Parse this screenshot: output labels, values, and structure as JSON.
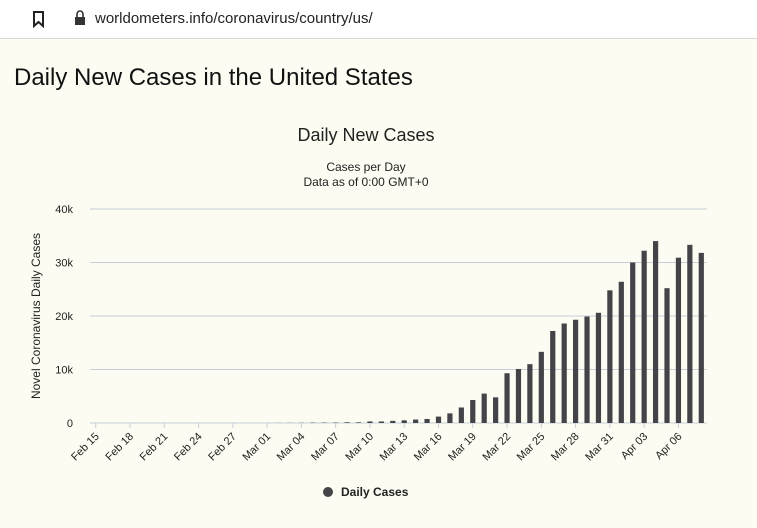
{
  "url": "worldometers.info/coronavirus/country/us/",
  "heading": "Daily New Cases in the United States",
  "chart_data": {
    "type": "bar",
    "title": "Daily New Cases",
    "subtitle": [
      "Cases per Day",
      "Data as of 0:00 GMT+0"
    ],
    "y_label": "Novel Coronavirus Daily Cases",
    "categories": [
      "Feb 15",
      null,
      null,
      "Feb 18",
      null,
      null,
      "Feb 21",
      null,
      null,
      "Feb 24",
      null,
      null,
      "Feb 27",
      null,
      null,
      "Mar 01",
      null,
      null,
      "Mar 04",
      null,
      null,
      "Mar 07",
      null,
      null,
      "Mar 10",
      null,
      null,
      "Mar 13",
      null,
      null,
      "Mar 16",
      null,
      null,
      "Mar 19",
      null,
      null,
      "Mar 22",
      null,
      null,
      "Mar 25",
      null,
      null,
      "Mar 28",
      null,
      null,
      "Mar 31",
      null,
      null,
      "Apr 03",
      null,
      null,
      "Apr 06",
      null,
      null
    ],
    "series": [
      {
        "name": "Daily Cases",
        "color": "#434348",
        "values": [
          0,
          0,
          0,
          0,
          0,
          0,
          0,
          0,
          0,
          0,
          0,
          0,
          0,
          0,
          0,
          8,
          20,
          25,
          33,
          69,
          65,
          82,
          137,
          124,
          290,
          280,
          400,
          500,
          650,
          750,
          1200,
          1800,
          2900,
          4300,
          5500,
          4800,
          9300,
          10100,
          11000,
          13300,
          17200,
          18600,
          19300,
          19900,
          20600,
          24800,
          26400,
          30000,
          32200,
          34000,
          25200,
          30900,
          33300,
          31800
        ]
      }
    ],
    "ylim": [
      0,
      40000
    ],
    "yticks": [
      0,
      {
        "value": 10000,
        "label": "10k"
      },
      {
        "value": 20000,
        "label": "20k"
      },
      {
        "value": 30000,
        "label": "30k"
      },
      {
        "value": 40000,
        "label": "40k"
      }
    ],
    "grid": true
  }
}
